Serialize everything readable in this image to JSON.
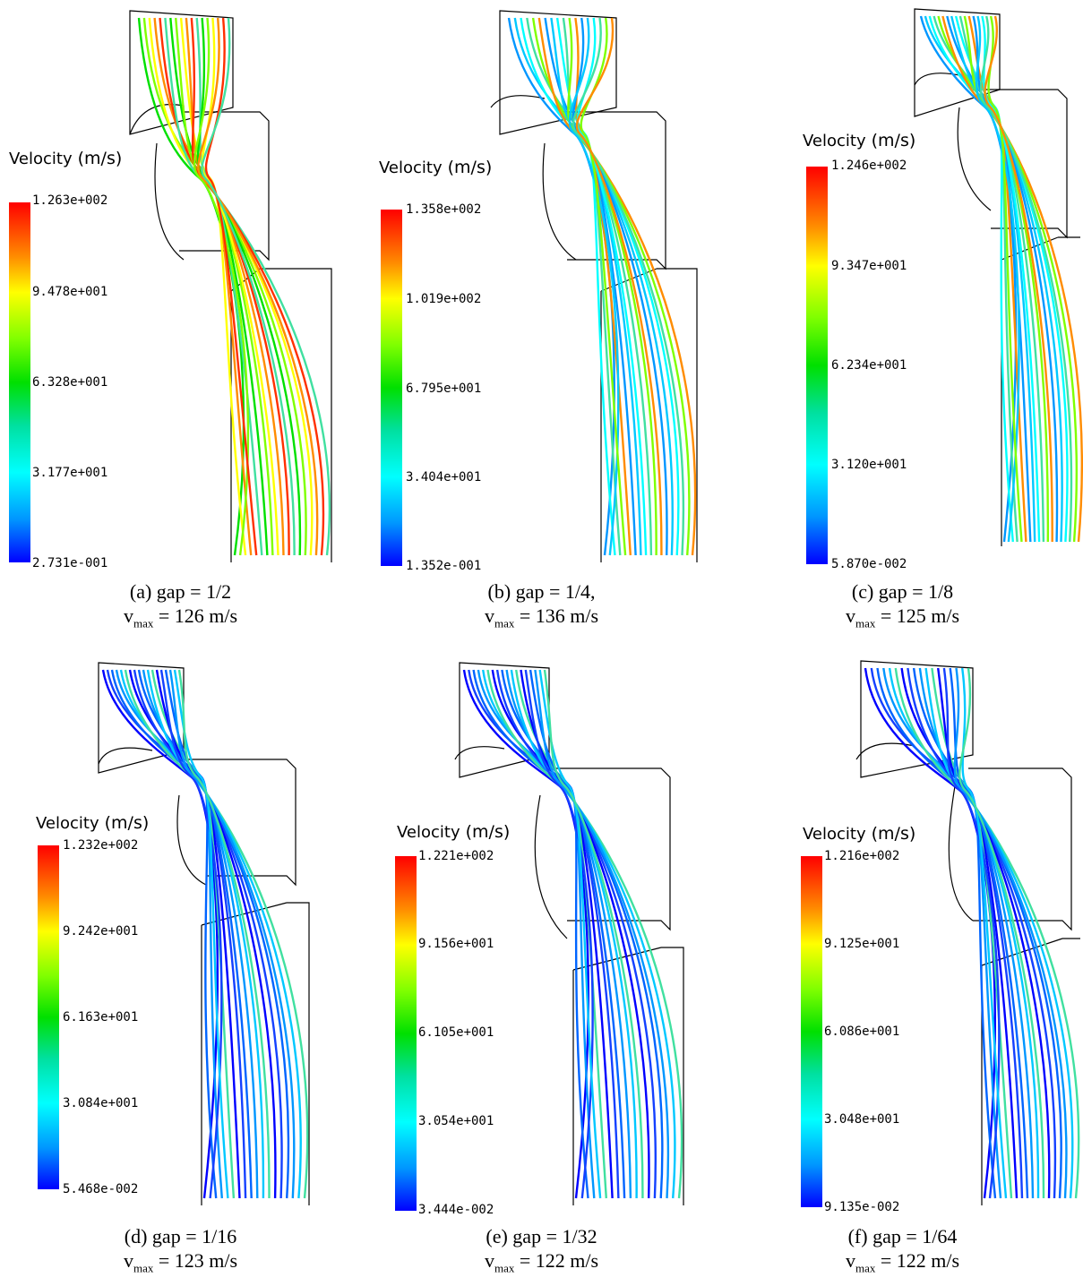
{
  "panels": [
    {
      "id": "a",
      "legend_title": "Velocity",
      "legend_unit": "(m/s)",
      "ticks": [
        "1.263e+002",
        "9.478e+001",
        "6.328e+001",
        "3.177e+001",
        "2.731e-001"
      ],
      "caption": "(a) gap = 1/2",
      "vmax_prefix": "v",
      "vmax_sub": "max",
      "vmax_value": "= 126 m/s",
      "scale": "hot"
    },
    {
      "id": "b",
      "legend_title": "Velocity",
      "legend_unit": "(m/s)",
      "ticks": [
        "1.358e+002",
        "1.019e+002",
        "6.795e+001",
        "3.404e+001",
        "1.352e-001"
      ],
      "caption": "(b) gap = 1/4,",
      "vmax_prefix": "v",
      "vmax_sub": "max",
      "vmax_value": "= 136 m/s",
      "scale": "cool"
    },
    {
      "id": "c",
      "legend_title": "Velocity",
      "legend_unit": "(m/s)",
      "ticks": [
        "1.246e+002",
        "9.347e+001",
        "6.234e+001",
        "3.120e+001",
        "5.870e-002"
      ],
      "caption": "(c) gap = 1/8",
      "vmax_prefix": "v",
      "vmax_sub": "max",
      "vmax_value": "= 125 m/s",
      "scale": "cool"
    },
    {
      "id": "d",
      "legend_title": "Velocity",
      "legend_unit": "(m/s)",
      "ticks": [
        "1.232e+002",
        "9.242e+001",
        "6.163e+001",
        "3.084e+001",
        "5.468e-002"
      ],
      "caption": "(d) gap = 1/16",
      "vmax_prefix": "v",
      "vmax_sub": "max",
      "vmax_value": "= 123 m/s",
      "scale": "blue"
    },
    {
      "id": "e",
      "legend_title": "Velocity",
      "legend_unit": "(m/s)",
      "ticks": [
        "1.221e+002",
        "9.156e+001",
        "6.105e+001",
        "3.054e+001",
        "3.444e-002"
      ],
      "caption": "(e) gap = 1/32",
      "vmax_prefix": "v",
      "vmax_sub": "max",
      "vmax_value": "= 122 m/s",
      "scale": "blue"
    },
    {
      "id": "f",
      "legend_title": "Velocity",
      "legend_unit": "(m/s)",
      "ticks": [
        "1.216e+002",
        "9.125e+001",
        "6.086e+001",
        "3.048e+001",
        "9.135e-002"
      ],
      "caption": "(f) gap = 1/64",
      "vmax_prefix": "v",
      "vmax_sub": "max",
      "vmax_value": "= 122 m/s",
      "scale": "blue"
    }
  ],
  "colors": {
    "red": "#ff0000",
    "yellow": "#ffff00",
    "green": "#00e000",
    "cyan": "#00ffff",
    "blue": "#0000ff",
    "outline": "#000000"
  }
}
